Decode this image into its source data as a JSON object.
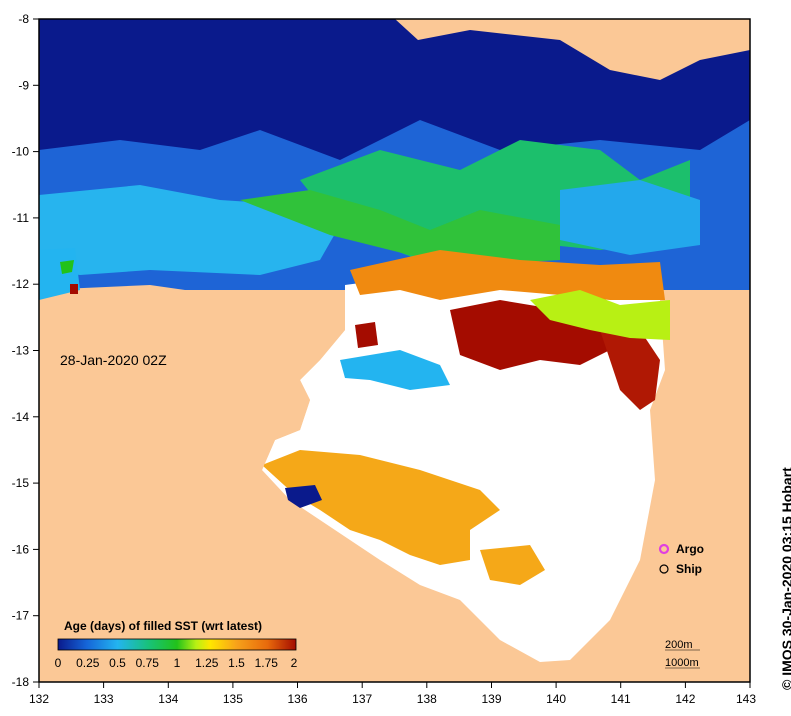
{
  "map": {
    "timestamp": "28-Jan-2020 02Z",
    "credit": "© IMOS 30-Jan-2020 03:15 Hobart",
    "x_axis": {
      "ticks": [
        "132",
        "133",
        "134",
        "135",
        "136",
        "137",
        "138",
        "139",
        "140",
        "141",
        "142",
        "143"
      ]
    },
    "y_axis": {
      "ticks": [
        "-8",
        "-9",
        "-10",
        "-11",
        "-12",
        "-13",
        "-14",
        "-15",
        "-16",
        "-17",
        "-18"
      ]
    },
    "lon_range": [
      132,
      143
    ],
    "lat_range": [
      -18,
      -8
    ],
    "colors": {
      "land": "#fbc896",
      "no_data": "#ffffff",
      "frame": "#000000"
    }
  },
  "colorbar": {
    "title": "Age (days) of filled SST (wrt latest)",
    "tick_labels": [
      "0",
      "0.25",
      "0.5",
      "0.75",
      "1",
      "1.25",
      "1.5",
      "1.75",
      "2"
    ],
    "range": [
      0,
      2
    ],
    "stops": [
      "#0a1a8c",
      "#1565d8",
      "#23b4f0",
      "#18c27a",
      "#22c21a",
      "#b8f014",
      "#ffe600",
      "#f7a21a",
      "#e86a0c",
      "#a40c00"
    ]
  },
  "legend": {
    "items": [
      {
        "label": "Argo",
        "marker": "magenta-star",
        "color": "#e040e0"
      },
      {
        "label": "Ship",
        "marker": "open-circle",
        "color": "#000000"
      }
    ]
  },
  "isobaths": {
    "items": [
      "200m",
      "1000m"
    ]
  }
}
